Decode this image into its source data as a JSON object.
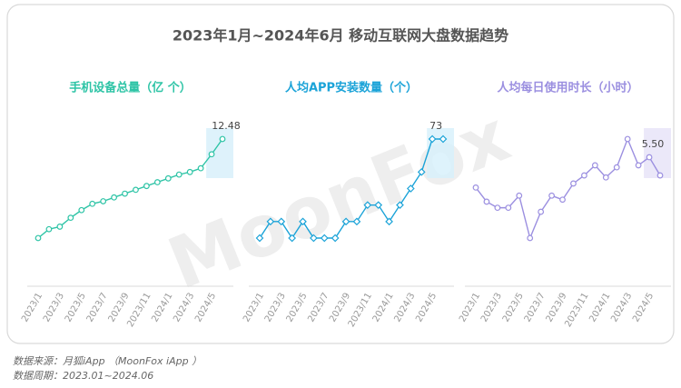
{
  "title": "2023年1月~2024年6月 移动互联网大盘数据趋势",
  "watermark": "MoonFox",
  "footnotes": [
    "数据来源：月狐iApp （MoonFox iApp ）",
    "数据周期：2023.01~2024.06"
  ],
  "chart_data": [
    {
      "type": "line",
      "title": "手机设备总量（亿 个）",
      "color": "#2ec4a6",
      "marker": "circle",
      "categories": [
        "2023/1",
        null,
        "2023/3",
        null,
        "2023/5",
        null,
        "2023/7",
        null,
        "2023/9",
        null,
        "2023/11",
        null,
        "2024/1",
        null,
        "2024/3",
        null,
        "2024/5",
        null
      ],
      "values": [
        11.7,
        11.77,
        11.79,
        11.86,
        11.92,
        11.97,
        11.99,
        12.02,
        12.05,
        12.08,
        12.11,
        12.14,
        12.17,
        12.2,
        12.22,
        12.25,
        12.36,
        12.48
      ],
      "value_labels": [
        null,
        null,
        null,
        null,
        null,
        null,
        null,
        null,
        null,
        null,
        null,
        null,
        null,
        null,
        null,
        null,
        null,
        "12.48"
      ]
    },
    {
      "type": "line",
      "title": "人均APP安装数量（个）",
      "color": "#1ba3d8",
      "marker": "diamond",
      "categories": [
        "2023/1",
        null,
        "2023/3",
        null,
        "2023/5",
        null,
        "2023/7",
        null,
        "2023/9",
        null,
        "2023/11",
        null,
        "2024/1",
        null,
        "2024/3",
        null,
        "2024/5",
        null
      ],
      "values": [
        67,
        68,
        68,
        67,
        68,
        67,
        67,
        67,
        68,
        68,
        69,
        69,
        68,
        69,
        70,
        71,
        73,
        73
      ],
      "value_labels": [
        null,
        null,
        null,
        null,
        null,
        null,
        null,
        null,
        null,
        null,
        null,
        null,
        null,
        null,
        null,
        null,
        "73",
        null
      ]
    },
    {
      "type": "line",
      "title": "人均每日使用时长（小时）",
      "color": "#9b8fe0",
      "marker": "circle",
      "categories": [
        "2023/1",
        null,
        "2023/3",
        null,
        "2023/5",
        null,
        "2023/7",
        null,
        "2023/9",
        null,
        "2023/11",
        null,
        "2024/1",
        null,
        "2024/3",
        null,
        "2024/5",
        null
      ],
      "values": [
        5.35,
        5.28,
        5.25,
        5.25,
        5.31,
        5.1,
        5.23,
        5.31,
        5.29,
        5.37,
        5.41,
        5.46,
        5.4,
        5.45,
        5.59,
        5.46,
        5.5,
        5.41
      ],
      "value_labels": [
        null,
        null,
        null,
        null,
        null,
        null,
        null,
        null,
        null,
        null,
        null,
        null,
        null,
        null,
        null,
        null,
        "5.50",
        null
      ]
    }
  ]
}
